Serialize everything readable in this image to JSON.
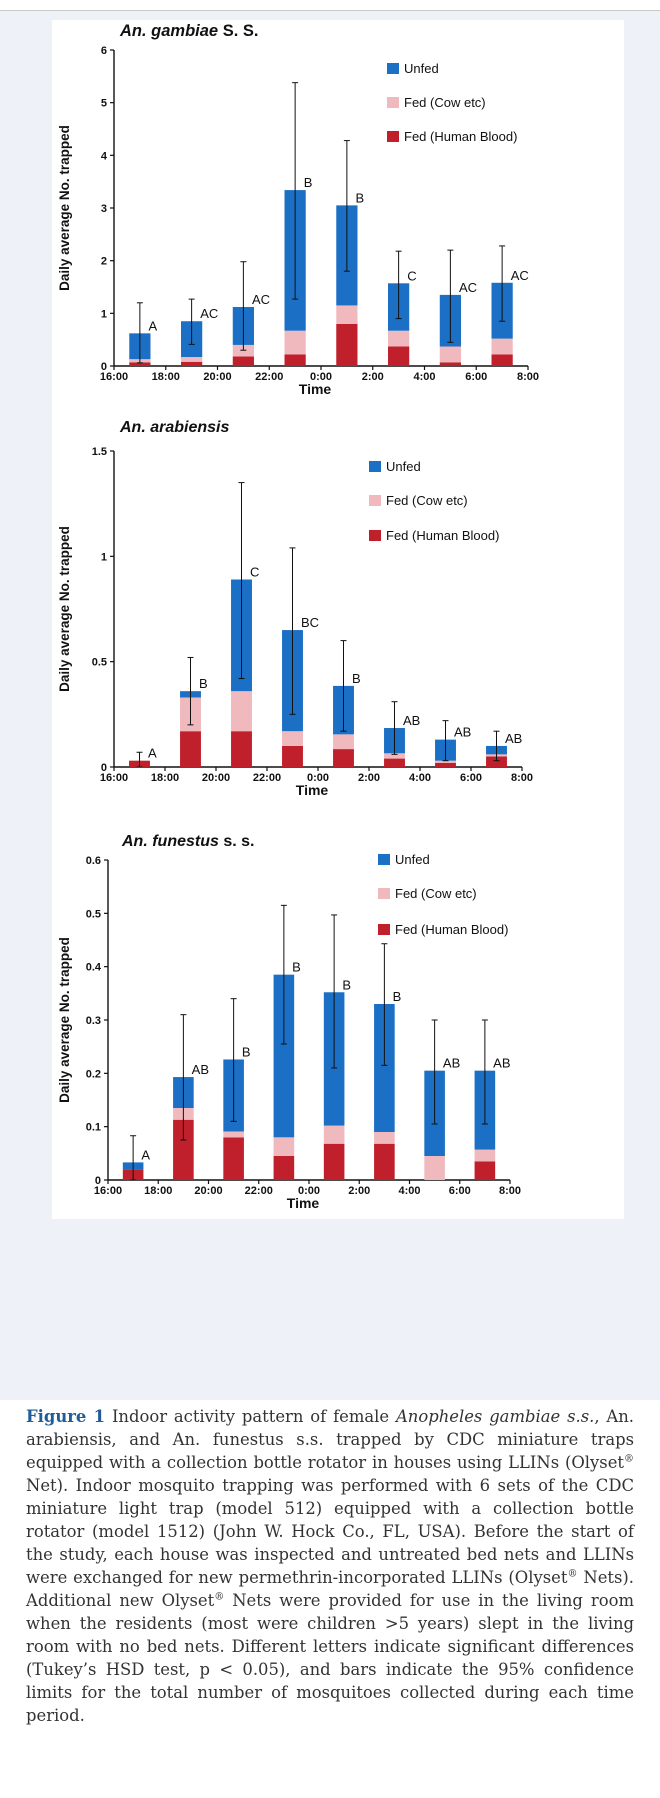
{
  "figure": {
    "chart_data": [
      {
        "type": "bar",
        "stacked": true,
        "title": "An. gambiae S. S.",
        "title_italic": "An. gambiae",
        "title_rest": "S. S.",
        "xlabel": "Time",
        "ylabel": "Daily average No.  trapped",
        "x_ticks": [
          "16:00",
          "18:00",
          "20:00",
          "22:00",
          "0:00",
          "2:00",
          "4:00",
          "6:00",
          "8:00"
        ],
        "y_ticks": [
          "0",
          "1",
          "2",
          "3",
          "4",
          "5",
          "6"
        ],
        "ylim": [
          0,
          6
        ],
        "categories": [
          "17:00",
          "19:00",
          "21:00",
          "23:00",
          "1:00",
          "3:00",
          "5:00",
          "7:00"
        ],
        "series": [
          {
            "name": "Fed (Human Blood)",
            "color": "#c0202c",
            "values": [
              0.07,
              0.08,
              0.18,
              0.22,
              0.8,
              0.37,
              0.07,
              0.22
            ]
          },
          {
            "name": "Fed (Cow etc)",
            "color": "#f0b9bd",
            "values": [
              0.06,
              0.09,
              0.22,
              0.45,
              0.35,
              0.3,
              0.3,
              0.3
            ]
          },
          {
            "name": "Unfed",
            "color": "#1b6fc4",
            "values": [
              0.49,
              0.68,
              0.72,
              2.67,
              1.9,
              0.9,
              0.98,
              1.06
            ]
          }
        ],
        "error_high": [
          1.2,
          1.27,
          1.98,
          5.38,
          4.28,
          2.18,
          2.2,
          2.28
        ],
        "error_low": [
          0.06,
          0.41,
          0.3,
          1.27,
          1.8,
          0.9,
          0.45,
          0.85
        ],
        "labels": [
          "A",
          "AC",
          "AC",
          "B",
          "B",
          "C",
          "AC",
          "AC"
        ],
        "legend": [
          "Unfed",
          "Fed (Cow etc)",
          "Fed (Human Blood)"
        ],
        "legend_position": "top-right"
      },
      {
        "type": "bar",
        "stacked": true,
        "title": "An. arabiensis",
        "title_italic": "An. arabiensis",
        "title_rest": "",
        "xlabel": "Time",
        "ylabel": "Daily average No.  trapped",
        "x_ticks": [
          "16:00",
          "18:00",
          "20:00",
          "22:00",
          "0:00",
          "2:00",
          "4:00",
          "6:00",
          "8:00"
        ],
        "y_ticks": [
          "0",
          "0.5",
          "1",
          "1.5"
        ],
        "ylim": [
          0,
          1.5
        ],
        "categories": [
          "17:00",
          "19:00",
          "21:00",
          "23:00",
          "1:00",
          "3:00",
          "5:00",
          "7:00"
        ],
        "series": [
          {
            "name": "Fed (Human Blood)",
            "color": "#c0202c",
            "values": [
              0.03,
              0.17,
              0.17,
              0.1,
              0.085,
              0.04,
              0.02,
              0.05
            ]
          },
          {
            "name": "Fed (Cow etc)",
            "color": "#f0b9bd",
            "values": [
              0,
              0.16,
              0.19,
              0.07,
              0.07,
              0.025,
              0.01,
              0.01
            ]
          },
          {
            "name": "Unfed",
            "color": "#1b6fc4",
            "values": [
              0,
              0.03,
              0.53,
              0.48,
              0.23,
              0.12,
              0.1,
              0.04
            ]
          }
        ],
        "error_high": [
          0.07,
          0.52,
          1.35,
          1.04,
          0.6,
          0.31,
          0.22,
          0.17
        ],
        "error_low": [
          0.0,
          0.2,
          0.42,
          0.25,
          0.17,
          0.06,
          0.03,
          0.03
        ],
        "labels": [
          "A",
          "B",
          "C",
          "BC",
          "B",
          "AB",
          "AB",
          "AB"
        ],
        "legend": [
          "Unfed",
          "Fed (Cow etc)",
          "Fed (Human Blood)"
        ],
        "legend_position": "top-right"
      },
      {
        "type": "bar",
        "stacked": true,
        "title": "An. funestus s. s.",
        "title_italic": "An. funestus",
        "title_rest": "s. s.",
        "xlabel": "Time",
        "ylabel": "Daily average No.  trapped",
        "x_ticks": [
          "16:00",
          "18:00",
          "20:00",
          "22:00",
          "0:00",
          "2:00",
          "4:00",
          "6:00",
          "8:00"
        ],
        "y_ticks": [
          "0",
          "0.1",
          "0.2",
          "0.3",
          "0.4",
          "0.5",
          "0.6"
        ],
        "ylim": [
          0,
          0.6
        ],
        "categories": [
          "17:00",
          "19:00",
          "21:00",
          "23:00",
          "1:00",
          "3:00",
          "5:00",
          "7:00"
        ],
        "series": [
          {
            "name": "Fed (Human Blood)",
            "color": "#c0202c",
            "values": [
              0.02,
              0.113,
              0.08,
              0.045,
              0.068,
              0.068,
              0,
              0.035
            ]
          },
          {
            "name": "Fed (Cow etc)",
            "color": "#f0b9bd",
            "values": [
              0,
              0.022,
              0.011,
              0.035,
              0.034,
              0.022,
              0.045,
              0.022
            ]
          },
          {
            "name": "Unfed",
            "color": "#1b6fc4",
            "values": [
              0.013,
              0.058,
              0.135,
              0.305,
              0.25,
              0.24,
              0.16,
              0.148
            ]
          }
        ],
        "error_high": [
          0.083,
          0.31,
          0.34,
          0.515,
          0.497,
          0.443,
          0.3,
          0.3
        ],
        "error_low": [
          0.0,
          0.075,
          0.11,
          0.255,
          0.21,
          0.215,
          0.105,
          0.105
        ],
        "labels": [
          "A",
          "AB",
          "B",
          "B",
          "B",
          "B",
          "AB",
          "AB"
        ],
        "legend": [
          "Unfed",
          "Fed (Cow etc)",
          "Fed (Human Blood)"
        ],
        "legend_position": "top-right"
      }
    ]
  },
  "caption": {
    "label": "Figure 1",
    "text_1": " Indoor activity pattern of female ",
    "species_italic": "Anopheles gambiae s.s.",
    "text_2": ", An. arabiensis, and An. funestus s.s. trapped by CDC miniature traps equipped with a collection bottle rotator in houses using LLINs (Olyset",
    "reg_mark": "®",
    "text_3": " Net). Indoor mosquito trapping was performed with 6 sets of the CDC miniature light trap (model 512) equipped with a collection bottle rotator (model 1512) (John W. Hock Co., FL, USA). Before the start of the study, each house was inspected and untreated bed nets and LLINs were exchanged for new permethrin-incorporated LLINs (Olyset",
    "text_4": " Nets). Additional new Olyset",
    "text_5": " Nets were provided for use in the living room when the residents (most were children >5 years) slept in the living room with no bed nets. Different letters indicate significant differences (Tukey’s HSD test, p < 0.05), and bars indicate the 95% confidence limits for the total number of mosquitoes collected during each time period."
  }
}
